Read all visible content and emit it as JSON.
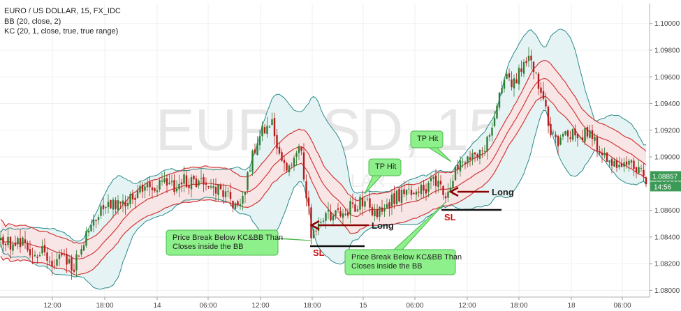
{
  "chart_data": {
    "type": "candlestick",
    "title": "EURO / US DOLLAR, 15, FX_IDC",
    "indicators": [
      "BB (20, close, 2)",
      "KC (20, 1, close, true, true range)"
    ],
    "watermark": {
      "symbol": "EURUSD, 15",
      "name": "EURO / US DOLLAR"
    },
    "ylim": [
      1.0795,
      1.1015
    ],
    "y_ticks": [
      "1.08000",
      "1.08200",
      "1.08400",
      "1.08600",
      "1.08800",
      "1.09000",
      "1.09200",
      "1.09400",
      "1.09600",
      "1.09800",
      "1.10000"
    ],
    "x_ticks": [
      "12:00",
      "18:00",
      "14",
      "06:00",
      "12:00",
      "18:00",
      "15",
      "06:00",
      "12:00",
      "18:00",
      "18",
      "06:00"
    ],
    "last_price": "1.08857",
    "countdown": "14:56",
    "price_path": [
      [
        0,
        1.0838
      ],
      [
        15,
        1.0835
      ],
      [
        30,
        1.0836
      ],
      [
        45,
        1.0828
      ],
      [
        60,
        1.083
      ],
      [
        75,
        1.0818
      ],
      [
        90,
        1.0826
      ],
      [
        105,
        1.0814
      ],
      [
        112,
        1.0826
      ],
      [
        125,
        1.0842
      ],
      [
        140,
        1.0856
      ],
      [
        155,
        1.0862
      ],
      [
        170,
        1.0868
      ],
      [
        185,
        1.0866
      ],
      [
        200,
        1.0874
      ],
      [
        215,
        1.0876
      ],
      [
        230,
        1.088
      ],
      [
        245,
        1.0878
      ],
      [
        260,
        1.0882
      ],
      [
        275,
        1.088
      ],
      [
        290,
        1.0882
      ],
      [
        305,
        1.0878
      ],
      [
        318,
        1.0876
      ],
      [
        330,
        1.0866
      ],
      [
        340,
        1.0862
      ],
      [
        346,
        1.0866
      ],
      [
        355,
        1.089
      ],
      [
        365,
        1.0906
      ],
      [
        375,
        1.0918
      ],
      [
        385,
        1.0925
      ],
      [
        390,
        1.093
      ],
      [
        396,
        1.0912
      ],
      [
        405,
        1.0896
      ],
      [
        415,
        1.089
      ],
      [
        425,
        1.0904
      ],
      [
        430,
        1.0908
      ],
      [
        435,
        1.0884
      ],
      [
        441,
        1.0862
      ],
      [
        446,
        1.084
      ],
      [
        452,
        1.0846
      ],
      [
        460,
        1.0852
      ],
      [
        470,
        1.0856
      ],
      [
        480,
        1.0858
      ],
      [
        495,
        1.086
      ],
      [
        510,
        1.0864
      ],
      [
        520,
        1.0866
      ],
      [
        530,
        1.0862
      ],
      [
        540,
        1.086
      ],
      [
        550,
        1.0862
      ],
      [
        560,
        1.0866
      ],
      [
        570,
        1.087
      ],
      [
        580,
        1.0872
      ],
      [
        590,
        1.0874
      ],
      [
        600,
        1.0876
      ],
      [
        610,
        1.0878
      ],
      [
        620,
        1.088
      ],
      [
        630,
        1.088
      ],
      [
        637,
        1.0868
      ],
      [
        642,
        1.0876
      ],
      [
        650,
        1.089
      ],
      [
        660,
        1.0898
      ],
      [
        670,
        1.0902
      ],
      [
        680,
        1.09
      ],
      [
        690,
        1.0904
      ],
      [
        700,
        1.0912
      ],
      [
        710,
        1.093
      ],
      [
        716,
        1.095
      ],
      [
        725,
        1.0962
      ],
      [
        735,
        1.0955
      ],
      [
        745,
        1.0964
      ],
      [
        752,
        1.097
      ],
      [
        758,
        1.0976
      ],
      [
        763,
        1.0968
      ],
      [
        770,
        1.0954
      ],
      [
        780,
        1.0938
      ],
      [
        790,
        1.0918
      ],
      [
        800,
        1.0912
      ],
      [
        810,
        1.0916
      ],
      [
        820,
        1.0918
      ],
      [
        830,
        1.0916
      ],
      [
        840,
        1.092
      ],
      [
        848,
        1.0914
      ],
      [
        855,
        1.0906
      ],
      [
        865,
        1.0902
      ],
      [
        875,
        1.0898
      ],
      [
        885,
        1.0896
      ],
      [
        895,
        1.0896
      ],
      [
        905,
        1.0894
      ],
      [
        915,
        1.089
      ],
      [
        925,
        1.0885
      ]
    ],
    "annotations": [
      {
        "type": "callout",
        "lines": [
          "Price Break Below KC&BB Than",
          "Closes inside the BB"
        ]
      },
      {
        "type": "callout",
        "lines": [
          "TP Hit"
        ]
      },
      {
        "type": "callout",
        "lines": [
          "Price Break Below KC&BB Than",
          "Closes inside the BB"
        ]
      },
      {
        "type": "callout",
        "lines": [
          "TP Hit"
        ]
      },
      {
        "type": "arrow",
        "label": "Long",
        "y": 1.0856
      },
      {
        "type": "arrow",
        "label": "Long",
        "y": 1.087
      },
      {
        "type": "stop_loss",
        "label": "SL",
        "y": 1.0843
      },
      {
        "type": "stop_loss",
        "label": "SL",
        "y": 1.086
      }
    ],
    "colors": {
      "bull": "#2e7d32",
      "bear": "#b71c1c",
      "bb_line": "#2a8a8a",
      "bb_fill": "#e6f3f4",
      "kc_line": "#d13838",
      "kc_fill": "#f8e6e6",
      "callout_fill": "#8ef08a",
      "callout_border": "#4cb84c",
      "arrow": "#8b0000",
      "price_badge": "#3b9a55"
    }
  }
}
